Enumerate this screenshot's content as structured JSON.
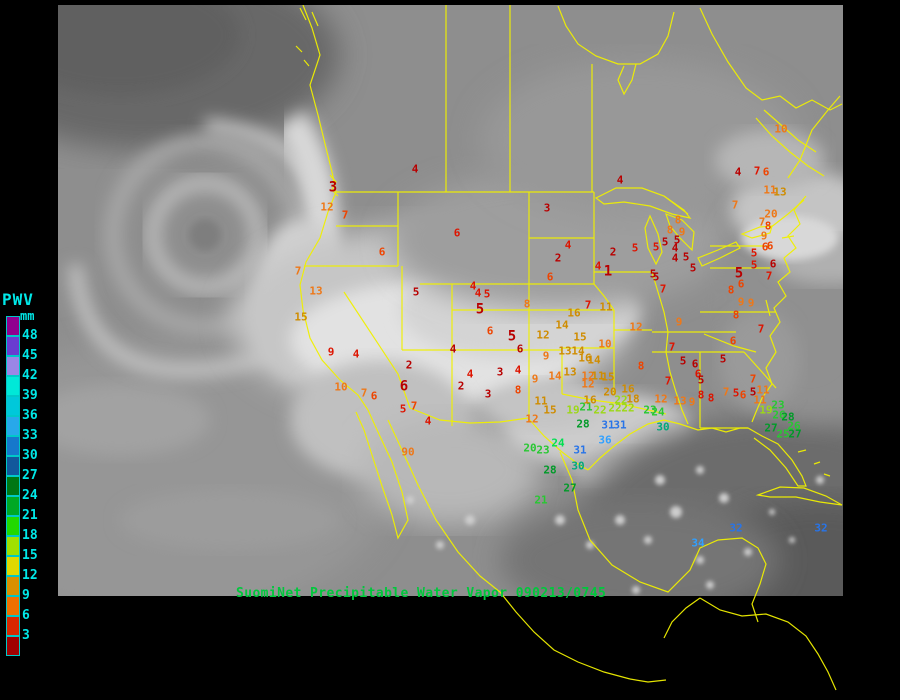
{
  "caption": {
    "text": "SuomiNet Precipitable Water Vapor 090213/0745",
    "color": "#00c83c"
  },
  "legend": {
    "title": "PWV",
    "unit": "mm",
    "labels": [
      "48",
      "45",
      "42",
      "39",
      "36",
      "33",
      "30",
      "27",
      "24",
      "21",
      "18",
      "15",
      "12",
      "9",
      "6",
      "3"
    ],
    "block_colors": [
      "#90008f",
      "#6a3cd0",
      "#9a86e6",
      "#00e8d8",
      "#00c8da",
      "#28a8ea",
      "#1678cc",
      "#12589c",
      "#007714",
      "#00a824",
      "#22d800",
      "#a0e000",
      "#e0d800",
      "#d89000",
      "#ee7000",
      "#d82800",
      "#a00000"
    ],
    "label_color": "#00e8e8"
  },
  "map": {
    "outline_color": "#f0f000"
  },
  "colors": {
    "dr": "#b80000",
    "rd": "#dd1400",
    "ro": "#ee4400",
    "or": "#ee7818",
    "am": "#cf8c00",
    "ye": "#e0d800",
    "ch": "#9cd816",
    "gr": "#28c832",
    "bg": "#00e050",
    "dg": "#009a28",
    "te": "#00a87c",
    "bl": "#2874e8",
    "lb": "#30a0ff"
  },
  "stations": [
    [
      4,
      415,
      169,
      "dr",
      0
    ],
    [
      3,
      333,
      188,
      "dr",
      1
    ],
    [
      12,
      327,
      207,
      "or",
      0
    ],
    [
      7,
      345,
      215,
      "ro",
      0
    ],
    [
      6,
      382,
      252,
      "ro",
      0
    ],
    [
      6,
      457,
      233,
      "rd",
      0
    ],
    [
      7,
      298,
      271,
      "or",
      0
    ],
    [
      13,
      316,
      291,
      "or",
      0
    ],
    [
      15,
      301,
      317,
      "am",
      0
    ],
    [
      5,
      416,
      292,
      "dr",
      0
    ],
    [
      4,
      620,
      180,
      "dr",
      0
    ],
    [
      3,
      547,
      208,
      "dr",
      0
    ],
    [
      4,
      568,
      245,
      "rd",
      0
    ],
    [
      2,
      558,
      258,
      "dr",
      0
    ],
    [
      2,
      613,
      252,
      "dr",
      0
    ],
    [
      5,
      635,
      248,
      "rd",
      0
    ],
    [
      5,
      656,
      247,
      "rd",
      0
    ],
    [
      4,
      598,
      266,
      "rd",
      0
    ],
    [
      1,
      608,
      272,
      "dr",
      1
    ],
    [
      5,
      656,
      277,
      "dr",
      0
    ],
    [
      6,
      550,
      277,
      "ro",
      0
    ],
    [
      4,
      473,
      286,
      "rd",
      0
    ],
    [
      4,
      478,
      293,
      "rd",
      0
    ],
    [
      5,
      487,
      294,
      "rd",
      0
    ],
    [
      5,
      480,
      310,
      "dr",
      1
    ],
    [
      8,
      527,
      304,
      "or",
      0
    ],
    [
      16,
      574,
      313,
      "am",
      0
    ],
    [
      7,
      588,
      305,
      "rd",
      0
    ],
    [
      11,
      606,
      307,
      "am",
      0
    ],
    [
      14,
      562,
      325,
      "am",
      0
    ],
    [
      12,
      543,
      335,
      "am",
      0
    ],
    [
      15,
      580,
      337,
      "am",
      0
    ],
    [
      6,
      490,
      331,
      "ro",
      0
    ],
    [
      5,
      512,
      337,
      "dr",
      1
    ],
    [
      10,
      605,
      344,
      "or",
      0
    ],
    [
      12,
      636,
      327,
      "or",
      0
    ],
    [
      9,
      679,
      322,
      "or",
      0
    ],
    [
      9,
      331,
      352,
      "rd",
      0
    ],
    [
      4,
      356,
      354,
      "rd",
      0
    ],
    [
      2,
      409,
      365,
      "dr",
      0
    ],
    [
      10,
      341,
      387,
      "or",
      0
    ],
    [
      7,
      364,
      393,
      "or",
      0
    ],
    [
      6,
      374,
      396,
      "ro",
      0
    ],
    [
      6,
      404,
      387,
      "dr",
      1
    ],
    [
      5,
      403,
      409,
      "rd",
      0
    ],
    [
      7,
      414,
      406,
      "ro",
      0
    ],
    [
      4,
      428,
      421,
      "rd",
      0
    ],
    [
      90,
      408,
      452,
      "or",
      0
    ],
    [
      4,
      453,
      349,
      "dr",
      0
    ],
    [
      6,
      520,
      349,
      "dr",
      0
    ],
    [
      4,
      470,
      374,
      "rd",
      0
    ],
    [
      3,
      500,
      372,
      "dr",
      0
    ],
    [
      4,
      518,
      370,
      "rd",
      0
    ],
    [
      2,
      461,
      386,
      "dr",
      0
    ],
    [
      3,
      488,
      394,
      "dr",
      0
    ],
    [
      8,
      518,
      390,
      "ro",
      0
    ],
    [
      9,
      535,
      379,
      "or",
      0
    ],
    [
      14,
      555,
      376,
      "or",
      0
    ],
    [
      13,
      570,
      372,
      "am",
      0
    ],
    [
      12,
      588,
      376,
      "or",
      0
    ],
    [
      11,
      598,
      376,
      "am",
      0
    ],
    [
      15,
      608,
      377,
      "am",
      0
    ],
    [
      12,
      588,
      384,
      "or",
      0
    ],
    [
      9,
      546,
      356,
      "or",
      0
    ],
    [
      13,
      565,
      351,
      "am",
      0
    ],
    [
      14,
      578,
      351,
      "am",
      0
    ],
    [
      16,
      585,
      358,
      "am",
      0
    ],
    [
      14,
      594,
      360,
      "am",
      0
    ],
    [
      8,
      641,
      366,
      "ro",
      0
    ],
    [
      7,
      668,
      381,
      "rd",
      0
    ],
    [
      7,
      672,
      347,
      "rd",
      0
    ],
    [
      11,
      541,
      401,
      "am",
      0
    ],
    [
      15,
      550,
      410,
      "am",
      0
    ],
    [
      19,
      573,
      410,
      "ch",
      0
    ],
    [
      21,
      586,
      407,
      "gr",
      0
    ],
    [
      22,
      600,
      410,
      "ch",
      0
    ],
    [
      22,
      615,
      408,
      "ch",
      0
    ],
    [
      22,
      628,
      408,
      "ch",
      0
    ],
    [
      16,
      590,
      400,
      "am",
      0
    ],
    [
      20,
      610,
      392,
      "am",
      0
    ],
    [
      16,
      628,
      389,
      "am",
      0
    ],
    [
      18,
      633,
      399,
      "am",
      0
    ],
    [
      22,
      621,
      400,
      "ch",
      0
    ],
    [
      12,
      532,
      419,
      "or",
      0
    ],
    [
      23,
      650,
      410,
      "gr",
      0
    ],
    [
      24,
      658,
      412,
      "gr",
      0
    ],
    [
      28,
      583,
      424,
      "dg",
      0
    ],
    [
      31,
      608,
      425,
      "bl",
      0
    ],
    [
      31,
      620,
      425,
      "bl",
      0
    ],
    [
      30,
      663,
      427,
      "te",
      0
    ],
    [
      36,
      605,
      440,
      "lb",
      0
    ],
    [
      12,
      661,
      399,
      "or",
      0
    ],
    [
      13,
      680,
      401,
      "or",
      0
    ],
    [
      9,
      692,
      402,
      "or",
      0
    ],
    [
      20,
      530,
      448,
      "gr",
      0
    ],
    [
      23,
      543,
      450,
      "gr",
      0
    ],
    [
      24,
      558,
      443,
      "bg",
      0
    ],
    [
      31,
      580,
      450,
      "bl",
      0
    ],
    [
      28,
      550,
      470,
      "dg",
      0
    ],
    [
      30,
      578,
      466,
      "te",
      0
    ],
    [
      27,
      570,
      488,
      "dg",
      0
    ],
    [
      21,
      541,
      500,
      "gr",
      0
    ],
    [
      34,
      698,
      543,
      "lb",
      0
    ],
    [
      32,
      736,
      528,
      "bl",
      0
    ],
    [
      32,
      821,
      528,
      "bl",
      0
    ],
    [
      5,
      683,
      361,
      "dr",
      0
    ],
    [
      6,
      695,
      364,
      "dr",
      0
    ],
    [
      6,
      698,
      374,
      "rd",
      0
    ],
    [
      5,
      701,
      380,
      "dr",
      0
    ],
    [
      6,
      733,
      341,
      "ro",
      0
    ],
    [
      5,
      723,
      359,
      "dr",
      0
    ],
    [
      7,
      753,
      379,
      "ro",
      0
    ],
    [
      7,
      726,
      392,
      "or",
      0
    ],
    [
      5,
      736,
      393,
      "rd",
      0
    ],
    [
      6,
      743,
      395,
      "ro",
      0
    ],
    [
      5,
      753,
      392,
      "dr",
      0
    ],
    [
      11,
      763,
      390,
      "or",
      0
    ],
    [
      11,
      760,
      400,
      "or",
      0
    ],
    [
      8,
      711,
      398,
      "rd",
      0
    ],
    [
      8,
      701,
      395,
      "rd",
      0
    ],
    [
      23,
      778,
      405,
      "gr",
      0
    ],
    [
      19,
      766,
      410,
      "ch",
      0
    ],
    [
      26,
      779,
      415,
      "gr",
      0
    ],
    [
      28,
      788,
      417,
      "dg",
      0
    ],
    [
      26,
      794,
      426,
      "gr",
      0
    ],
    [
      27,
      771,
      428,
      "dg",
      0
    ],
    [
      25,
      783,
      434,
      "gr",
      0
    ],
    [
      27,
      795,
      434,
      "dg",
      0
    ],
    [
      9,
      741,
      302,
      "or",
      0
    ],
    [
      9,
      751,
      303,
      "or",
      0
    ],
    [
      8,
      736,
      315,
      "ro",
      0
    ],
    [
      7,
      761,
      329,
      "rd",
      0
    ],
    [
      8,
      731,
      290,
      "ro",
      0
    ],
    [
      6,
      741,
      284,
      "ro",
      0
    ],
    [
      5,
      739,
      274,
      "dr",
      1
    ],
    [
      5,
      754,
      253,
      "rd",
      0
    ],
    [
      6,
      765,
      247,
      "ro",
      0
    ],
    [
      5,
      754,
      265,
      "rd",
      0
    ],
    [
      6,
      773,
      264,
      "dr",
      0
    ],
    [
      7,
      769,
      276,
      "rd",
      0
    ],
    [
      7,
      663,
      289,
      "rd",
      0
    ],
    [
      5,
      653,
      274,
      "dr",
      0
    ],
    [
      5,
      693,
      268,
      "dr",
      0
    ],
    [
      4,
      675,
      258,
      "dr",
      0
    ],
    [
      5,
      686,
      257,
      "dr",
      0
    ],
    [
      4,
      675,
      248,
      "dr",
      0
    ],
    [
      5,
      665,
      242,
      "dr",
      0
    ],
    [
      5,
      677,
      240,
      "dr",
      0
    ],
    [
      8,
      678,
      220,
      "or",
      0
    ],
    [
      8,
      670,
      230,
      "or",
      0
    ],
    [
      9,
      682,
      232,
      "or",
      0
    ],
    [
      7,
      735,
      205,
      "or",
      0
    ],
    [
      20,
      771,
      214,
      "or",
      0
    ],
    [
      7,
      762,
      222,
      "or",
      0
    ],
    [
      8,
      768,
      226,
      "ro",
      0
    ],
    [
      9,
      764,
      236,
      "or",
      0
    ],
    [
      6,
      770,
      246,
      "ro",
      0
    ],
    [
      11,
      770,
      190,
      "or",
      0
    ],
    [
      13,
      780,
      192,
      "am",
      0
    ],
    [
      10,
      781,
      129,
      "or",
      0
    ],
    [
      4,
      738,
      172,
      "dr",
      0
    ],
    [
      7,
      757,
      171,
      "rd",
      0
    ],
    [
      6,
      766,
      172,
      "ro",
      0
    ]
  ]
}
